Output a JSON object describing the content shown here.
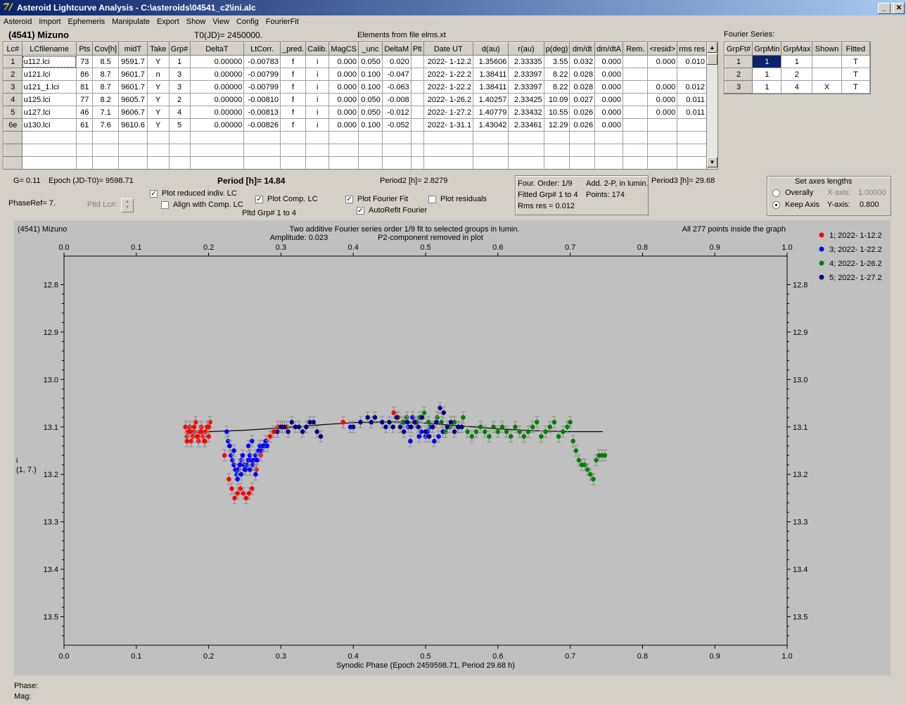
{
  "window": {
    "title": "Asteroid Lightcurve Analysis - C:\\asteroids\\04541_c2\\ini.alc",
    "app_icon": "7/ app-icon",
    "buttons": [
      "_",
      "□",
      "✕"
    ]
  },
  "menu": [
    "Asteroid",
    "Import",
    "Ephemeris",
    "Manipulate",
    "Export",
    "Show",
    "View",
    "Config",
    "FourierFit"
  ],
  "header": {
    "asteroid": "(4541) Mizuno",
    "t0": "T0(JD)= 2450000.",
    "elements": "Elements from file elms.xt",
    "fourier_series_label": "Fourier Series:"
  },
  "lc_table": {
    "columns": [
      "Lc#",
      "LCfilename",
      "Pts",
      "Cov[h]",
      "midT",
      "Take",
      "Grp#",
      "DeltaT",
      "LtCorr.",
      "_pred.",
      "Calib.",
      "MagCS",
      "_unc",
      "DeltaM",
      "Plt",
      "Date UT",
      "d(au)",
      "r(au)",
      "p(deg)",
      "dm/dt",
      "dm/dtA",
      "Rem.",
      "<resid>",
      "rms res"
    ],
    "rows": [
      [
        "1",
        "u112.lci",
        "73",
        "8.5",
        "9591.7",
        "Y",
        "1",
        "0.00000",
        "-0.00783",
        "f",
        "i",
        "0.000",
        "0.050",
        "0.020",
        "",
        "2022- 1-12.2",
        "1.35606",
        "2.33335",
        "3.55",
        "0.032",
        "0.000",
        "",
        "0.000",
        "0.010"
      ],
      [
        "2",
        "u121.lci",
        "86",
        "8.7",
        "9601.7",
        "n",
        "3",
        "0.00000",
        "-0.00799",
        "f",
        "i",
        "0.000",
        "0.100",
        "-0.047",
        "",
        "2022- 1-22.2",
        "1.38411",
        "2.33397",
        "8.22",
        "0.028",
        "0.000",
        "",
        "",
        ""
      ],
      [
        "3",
        "u121_1.lci",
        "81",
        "8.7",
        "9601.7",
        "Y",
        "3",
        "0.00000",
        "-0.00799",
        "f",
        "i",
        "0.000",
        "0.100",
        "-0.063",
        "",
        "2022- 1-22.2",
        "1.38411",
        "2.33397",
        "8.22",
        "0.028",
        "0.000",
        "",
        "0.000",
        "0.012"
      ],
      [
        "4",
        "u125.lci",
        "77",
        "8.2",
        "9605.7",
        "Y",
        "2",
        "0.00000",
        "-0.00810",
        "f",
        "i",
        "0.000",
        "0.050",
        "-0.008",
        "",
        "2022- 1-26.2",
        "1.40257",
        "2.33425",
        "10.09",
        "0.027",
        "0.000",
        "",
        "0.000",
        "0.011"
      ],
      [
        "5",
        "u127.lci",
        "46",
        "7.1",
        "9606.7",
        "Y",
        "4",
        "0.00000",
        "-0.00813",
        "f",
        "i",
        "0.000",
        "0.050",
        "-0.012",
        "",
        "2022- 1-27.2",
        "1.40779",
        "2.33432",
        "10.55",
        "0.026",
        "0.000",
        "",
        "0.000",
        "0.011"
      ],
      [
        "6e",
        "u130.lci",
        "61",
        "7.6",
        "9610.6",
        "Y",
        "5",
        "0.00000",
        "-0.00826",
        "f",
        "i",
        "0.000",
        "0.100",
        "-0.052",
        "",
        "2022- 1-31.1",
        "1.43042",
        "2.33461",
        "12.29",
        "0.026",
        "0.000",
        "",
        "",
        ""
      ]
    ]
  },
  "fourier_table": {
    "columns": [
      "GrpFt#",
      "GrpMin",
      "GrpMax",
      "Shown",
      "Fitted"
    ],
    "rows": [
      [
        "1",
        "1",
        "1",
        "",
        "T"
      ],
      [
        "2",
        "1",
        "2",
        "",
        "T"
      ],
      [
        "3",
        "1",
        "4",
        "X",
        "T"
      ]
    ]
  },
  "params": {
    "g": "G= 0.11",
    "epoch": "Epoch (JD-T0)= 9598.71",
    "period": "Period [h]= 14.84",
    "period2": "Period2 [h]= 2.8279",
    "period3": "Period3 [h]= 29.68",
    "phaseref": "PhaseRef= 7.",
    "pltd_lc": "Pltd Lc#:",
    "pltd_grp": "Pltd Grp#  1   to   4"
  },
  "checkboxes": {
    "plot_reduced": {
      "label": "Plot reduced indiv. LC",
      "checked": true
    },
    "align_comp": {
      "label": "Align with Comp. LC",
      "checked": false
    },
    "plot_comp": {
      "label": "Plot Comp. LC",
      "checked": true
    },
    "plot_fourier": {
      "label": "Plot Fourier Fit",
      "checked": true
    },
    "autorefit": {
      "label": "AutoRefit Fourier",
      "checked": true
    },
    "plot_residuals": {
      "label": "Plot residuals",
      "checked": false
    }
  },
  "fit_info": {
    "order": "Four. Order:  1/9",
    "add2p": "Add. 2-P, in lumin.",
    "fitted": "Fitted Grp# 1 to 4",
    "points": "Points: 174",
    "rms": "Rms res      = 0.012"
  },
  "axes_box": {
    "title": "Set axes lengths",
    "overally": "Overally",
    "keep_axis": "Keep Axis",
    "xaxis_label": "X-axis:",
    "xaxis_value": "1.00000",
    "yaxis_label": "Y-axis:",
    "yaxis_value": "0.800",
    "selected": "keep_axis"
  },
  "status": {
    "phase_label": "Phase:",
    "mag_label": "Mag:"
  },
  "chart_data": {
    "type": "scatter",
    "title_left": "(4541) Mizuno",
    "title_center_1": "Two additive Fourier series order 1/9 fit to selected groups in lumin.",
    "title_center_2": "Amplitude: 0.023",
    "title_center_3": "P2-component removed in plot",
    "title_right": "All 277 points inside the graph",
    "xlabel": "Synodic Phase (Epoch 2459598.71, Period 29.68 h)",
    "ylabel_1": "i",
    "ylabel_2": "(1, 7.)",
    "xlim": [
      0.0,
      1.0
    ],
    "ylim": [
      12.74,
      13.56
    ],
    "y_inverted": true,
    "xticks": [
      0.0,
      0.1,
      0.2,
      0.3,
      0.4,
      0.5,
      0.6,
      0.7,
      0.8,
      0.9,
      1.0
    ],
    "xtick_labels": [
      "0.0",
      "0.1",
      "0.2",
      "0.3",
      "0.4",
      "0.5",
      "0.6",
      "0.7",
      "0.8",
      "0.9",
      "1.0"
    ],
    "yticks": [
      12.8,
      12.9,
      13.0,
      13.1,
      13.2,
      13.3,
      13.4,
      13.5
    ],
    "ytick_labels": [
      "12.8",
      "12.9",
      "13.0",
      "13.1",
      "13.2",
      "13.3",
      "13.4",
      "13.5"
    ],
    "legend_position": "right",
    "series": [
      {
        "name": "1; 2022- 1-12.2",
        "color": "#ff0000",
        "x": [
          0.168,
          0.17,
          0.172,
          0.174,
          0.176,
          0.178,
          0.18,
          0.182,
          0.184,
          0.186,
          0.188,
          0.19,
          0.192,
          0.194,
          0.196,
          0.198,
          0.2,
          0.202,
          0.17,
          0.175,
          0.18,
          0.185,
          0.19,
          0.195,
          0.2,
          0.222,
          0.228,
          0.232,
          0.236,
          0.24,
          0.244,
          0.248,
          0.252,
          0.256,
          0.26,
          0.266,
          0.272,
          0.276,
          0.28,
          0.285,
          0.29,
          0.296,
          0.302,
          0.308,
          0.386,
          0.456,
          0.462
        ],
        "y": [
          13.1,
          13.12,
          13.11,
          13.1,
          13.13,
          13.12,
          13.11,
          13.09,
          13.12,
          13.13,
          13.11,
          13.1,
          13.12,
          13.13,
          13.11,
          13.1,
          13.12,
          13.09,
          13.13,
          13.11,
          13.1,
          13.12,
          13.11,
          13.13,
          13.1,
          13.16,
          13.21,
          13.23,
          13.25,
          13.24,
          13.23,
          13.24,
          13.25,
          13.24,
          13.23,
          13.19,
          13.16,
          13.14,
          13.13,
          13.12,
          13.11,
          13.1,
          13.1,
          13.1,
          13.09,
          13.07,
          13.08
        ]
      },
      {
        "name": "3; 2022- 1-22.2",
        "color": "#0000ff",
        "x": [
          0.225,
          0.227,
          0.229,
          0.231,
          0.233,
          0.235,
          0.237,
          0.239,
          0.241,
          0.243,
          0.245,
          0.247,
          0.249,
          0.251,
          0.253,
          0.255,
          0.257,
          0.259,
          0.261,
          0.263,
          0.265,
          0.267,
          0.269,
          0.271,
          0.273,
          0.275,
          0.277,
          0.279,
          0.281,
          0.24,
          0.245,
          0.25,
          0.255,
          0.26,
          0.235,
          0.243,
          0.257,
          0.265,
          0.396,
          0.47,
          0.476,
          0.482,
          0.488,
          0.494,
          0.5,
          0.506,
          0.512,
          0.518,
          0.524,
          0.479,
          0.491,
          0.503
        ],
        "y": [
          13.11,
          13.13,
          13.14,
          13.16,
          13.17,
          13.18,
          13.19,
          13.2,
          13.19,
          13.18,
          13.17,
          13.16,
          13.18,
          13.19,
          13.18,
          13.17,
          13.16,
          13.17,
          13.18,
          13.17,
          13.16,
          13.17,
          13.15,
          13.14,
          13.15,
          13.14,
          13.14,
          13.13,
          13.14,
          13.21,
          13.2,
          13.19,
          13.14,
          13.13,
          13.15,
          13.18,
          13.19,
          13.2,
          13.1,
          13.09,
          13.1,
          13.08,
          13.09,
          13.11,
          13.12,
          13.1,
          13.13,
          13.12,
          13.11,
          13.13,
          13.12,
          13.11
        ]
      },
      {
        "name": "4; 2022- 1-26.2",
        "color": "#008000",
        "x": [
          0.468,
          0.474,
          0.48,
          0.486,
          0.492,
          0.498,
          0.504,
          0.51,
          0.516,
          0.522,
          0.528,
          0.534,
          0.54,
          0.546,
          0.552,
          0.558,
          0.564,
          0.57,
          0.576,
          0.582,
          0.588,
          0.594,
          0.6,
          0.606,
          0.612,
          0.618,
          0.624,
          0.63,
          0.636,
          0.642,
          0.648,
          0.654,
          0.66,
          0.666,
          0.672,
          0.678,
          0.684,
          0.69,
          0.696,
          0.7,
          0.704,
          0.708,
          0.712,
          0.716,
          0.72,
          0.724,
          0.728,
          0.732,
          0.736,
          0.74,
          0.744,
          0.748
        ],
        "y": [
          13.09,
          13.08,
          13.1,
          13.09,
          13.08,
          13.07,
          13.09,
          13.1,
          13.08,
          13.09,
          13.11,
          13.1,
          13.09,
          13.1,
          13.08,
          13.11,
          13.12,
          13.11,
          13.1,
          13.11,
          13.12,
          13.1,
          13.11,
          13.1,
          13.11,
          13.12,
          13.1,
          13.11,
          13.12,
          13.11,
          13.1,
          13.09,
          13.12,
          13.11,
          13.1,
          13.09,
          13.12,
          13.11,
          13.1,
          13.09,
          13.13,
          13.15,
          13.17,
          13.18,
          13.18,
          13.19,
          13.2,
          13.21,
          13.17,
          13.16,
          13.16,
          13.16
        ]
      },
      {
        "name": "5; 2022- 1-27.2",
        "color": "#00007f",
        "x": [
          0.295,
          0.3,
          0.305,
          0.31,
          0.315,
          0.32,
          0.325,
          0.33,
          0.335,
          0.34,
          0.345,
          0.35,
          0.355,
          0.4,
          0.41,
          0.42,
          0.425,
          0.43,
          0.44,
          0.445,
          0.45,
          0.455,
          0.46,
          0.465,
          0.47,
          0.475,
          0.48,
          0.485,
          0.49,
          0.495,
          0.5,
          0.505,
          0.51,
          0.515,
          0.52,
          0.525,
          0.53,
          0.535,
          0.54,
          0.545,
          0.55
        ],
        "y": [
          13.11,
          13.1,
          13.1,
          13.11,
          13.09,
          13.1,
          13.1,
          13.11,
          13.1,
          13.09,
          13.09,
          13.11,
          13.12,
          13.1,
          13.09,
          13.08,
          13.09,
          13.08,
          13.09,
          13.1,
          13.09,
          13.1,
          13.08,
          13.1,
          13.11,
          13.09,
          13.1,
          13.09,
          13.1,
          13.08,
          13.11,
          13.12,
          13.1,
          13.09,
          13.06,
          13.07,
          13.1,
          13.09,
          13.11,
          13.1,
          13.1
        ]
      }
    ],
    "fit_curve": {
      "x": [
        0.17,
        0.2,
        0.25,
        0.3,
        0.35,
        0.4,
        0.45,
        0.5,
        0.55,
        0.6,
        0.65,
        0.7,
        0.745
      ],
      "y": [
        13.112,
        13.11,
        13.107,
        13.102,
        13.096,
        13.091,
        13.089,
        13.092,
        13.098,
        13.104,
        13.108,
        13.11,
        13.11
      ]
    }
  }
}
